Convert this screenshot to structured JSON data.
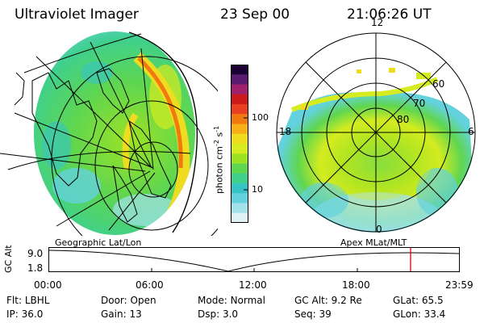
{
  "header": {
    "instrument": "Ultraviolet Imager",
    "date": "23 Sep 00",
    "time": "21:06:26 UT"
  },
  "colorbar": {
    "unit": "photon cm",
    "unit_sup1": "-2",
    "unit_mid": "s",
    "unit_sup2": "-1",
    "tick_high": "100",
    "tick_low": "10",
    "colors": [
      "#1a0033",
      "#5a1a6e",
      "#a0206e",
      "#cc1a1a",
      "#e84020",
      "#f07a10",
      "#f7b016",
      "#eedc20",
      "#d4ec20",
      "#9ee224",
      "#5fd650",
      "#3fd08c",
      "#37c4c4",
      "#64d2dc",
      "#a4e2ea",
      "#dff2f6"
    ]
  },
  "geo_map": {
    "caption": "Geographic Lat/Lon"
  },
  "polar_map": {
    "caption": "Apex MLat/MLT",
    "mlt_top": "12",
    "mlt_left": "18",
    "mlt_right": "6",
    "mlt_bottom": "0",
    "lat_labels": [
      "60",
      "70",
      "80"
    ]
  },
  "altitude_plot": {
    "ylabel": "GC Alt",
    "ytick_top": "9.0",
    "ytick_bottom": "1.8",
    "xticks": [
      "00:00",
      "06:00",
      "12:00",
      "18:00",
      "23:59"
    ]
  },
  "info": {
    "row1": [
      {
        "label": "Flt:",
        "value": "LBHL"
      },
      {
        "label": "Door:",
        "value": "Open"
      },
      {
        "label": "Mode:",
        "value": "Normal"
      },
      {
        "label": "GC Alt:",
        "value": "9.2 Re"
      },
      {
        "label": "GLat:",
        "value": "65.5"
      }
    ],
    "row2": [
      {
        "label": "IP:",
        "value": "36.0"
      },
      {
        "label": "Gain:",
        "value": "13"
      },
      {
        "label": "Dsp:",
        "value": "3.0"
      },
      {
        "label": "Seq:",
        "value": "39"
      },
      {
        "label": "GLon:",
        "value": "33.4"
      }
    ]
  }
}
